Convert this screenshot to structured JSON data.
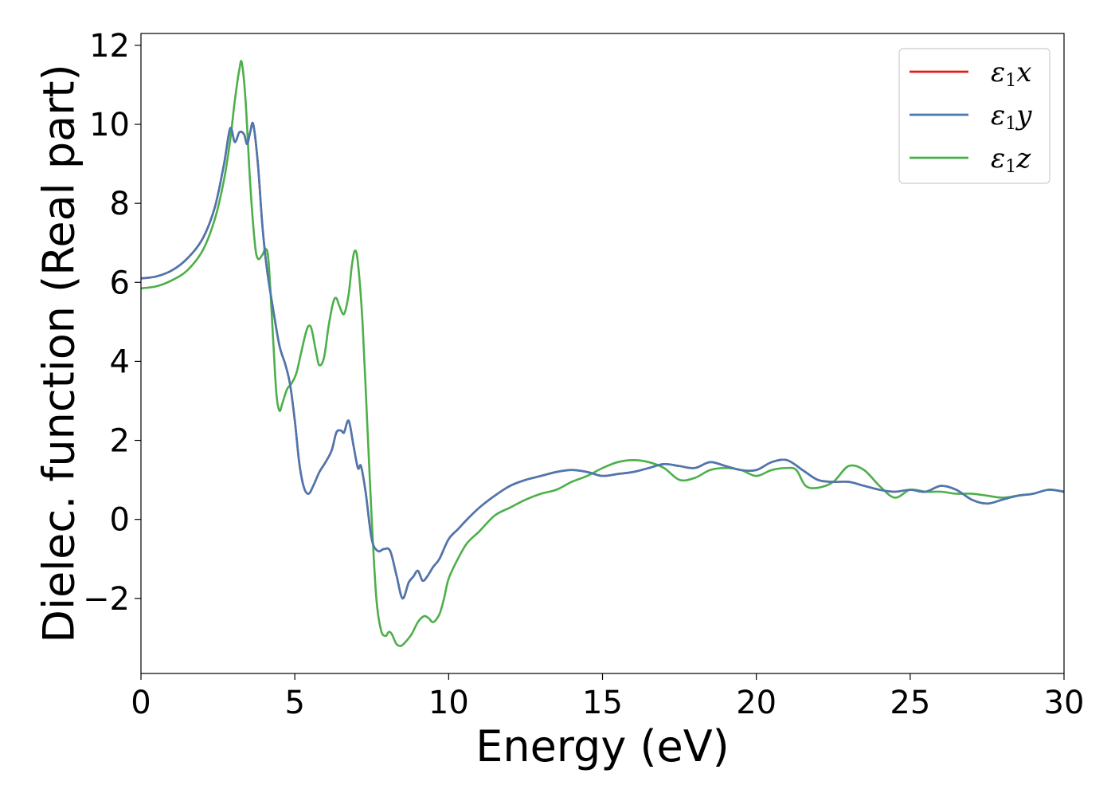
{
  "chart_data": {
    "type": "line",
    "xlabel": "Energy (eV)",
    "ylabel": "Dielec. function (Real part)",
    "xlim": [
      0,
      30
    ],
    "ylim": [
      -3.9,
      12.3
    ],
    "xticks": [
      0,
      5,
      10,
      15,
      20,
      25,
      30
    ],
    "yticks": [
      -2,
      0,
      2,
      4,
      6,
      8,
      10,
      12
    ],
    "xtick_labels": [
      "0",
      "5",
      "10",
      "15",
      "20",
      "25",
      "30"
    ],
    "ytick_labels": [
      "−2",
      "0",
      "2",
      "4",
      "6",
      "8",
      "10",
      "12"
    ],
    "grid": false,
    "legend_position": "top-right",
    "series": [
      {
        "name": "ε1x",
        "legend_main": "ε",
        "legend_sub": "1",
        "legend_tail": "x",
        "color": "#e41a1c",
        "points": [
          [
            0,
            6.1
          ],
          [
            0.5,
            6.15
          ],
          [
            1.0,
            6.3
          ],
          [
            1.5,
            6.6
          ],
          [
            2.0,
            7.1
          ],
          [
            2.4,
            7.9
          ],
          [
            2.7,
            9.0
          ],
          [
            2.9,
            9.9
          ],
          [
            3.05,
            9.55
          ],
          [
            3.2,
            9.8
          ],
          [
            3.35,
            9.75
          ],
          [
            3.45,
            9.5
          ],
          [
            3.55,
            9.8
          ],
          [
            3.65,
            10.0
          ],
          [
            3.8,
            9.0
          ],
          [
            3.95,
            7.4
          ],
          [
            4.1,
            6.3
          ],
          [
            4.3,
            5.3
          ],
          [
            4.5,
            4.4
          ],
          [
            4.7,
            3.9
          ],
          [
            4.85,
            3.4
          ],
          [
            5.0,
            2.5
          ],
          [
            5.15,
            1.4
          ],
          [
            5.3,
            0.8
          ],
          [
            5.45,
            0.65
          ],
          [
            5.6,
            0.85
          ],
          [
            5.8,
            1.2
          ],
          [
            6.0,
            1.45
          ],
          [
            6.2,
            1.75
          ],
          [
            6.35,
            2.2
          ],
          [
            6.5,
            2.25
          ],
          [
            6.6,
            2.2
          ],
          [
            6.75,
            2.5
          ],
          [
            6.9,
            1.9
          ],
          [
            7.05,
            1.3
          ],
          [
            7.15,
            1.35
          ],
          [
            7.3,
            0.7
          ],
          [
            7.5,
            -0.5
          ],
          [
            7.7,
            -0.8
          ],
          [
            7.9,
            -0.75
          ],
          [
            8.1,
            -0.8
          ],
          [
            8.3,
            -1.4
          ],
          [
            8.5,
            -2.0
          ],
          [
            8.7,
            -1.6
          ],
          [
            8.85,
            -1.45
          ],
          [
            9.0,
            -1.3
          ],
          [
            9.15,
            -1.55
          ],
          [
            9.3,
            -1.45
          ],
          [
            9.5,
            -1.2
          ],
          [
            9.7,
            -1.0
          ],
          [
            10.0,
            -0.5
          ],
          [
            10.3,
            -0.25
          ],
          [
            10.6,
            0.0
          ],
          [
            11.0,
            0.3
          ],
          [
            11.5,
            0.6
          ],
          [
            12.0,
            0.85
          ],
          [
            12.5,
            1.0
          ],
          [
            13.0,
            1.1
          ],
          [
            13.5,
            1.2
          ],
          [
            14.0,
            1.25
          ],
          [
            14.5,
            1.2
          ],
          [
            15.0,
            1.1
          ],
          [
            15.5,
            1.15
          ],
          [
            16.0,
            1.2
          ],
          [
            16.5,
            1.3
          ],
          [
            17.0,
            1.4
          ],
          [
            17.5,
            1.35
          ],
          [
            18.0,
            1.3
          ],
          [
            18.5,
            1.45
          ],
          [
            19.0,
            1.35
          ],
          [
            19.5,
            1.25
          ],
          [
            20.0,
            1.25
          ],
          [
            20.5,
            1.45
          ],
          [
            21.0,
            1.5
          ],
          [
            21.5,
            1.25
          ],
          [
            22.0,
            1.0
          ],
          [
            22.5,
            0.95
          ],
          [
            23.0,
            0.95
          ],
          [
            23.5,
            0.85
          ],
          [
            24.0,
            0.75
          ],
          [
            24.5,
            0.7
          ],
          [
            25.0,
            0.75
          ],
          [
            25.5,
            0.7
          ],
          [
            26.0,
            0.85
          ],
          [
            26.5,
            0.75
          ],
          [
            27.0,
            0.5
          ],
          [
            27.5,
            0.4
          ],
          [
            28.0,
            0.5
          ],
          [
            28.5,
            0.6
          ],
          [
            29.0,
            0.65
          ],
          [
            29.5,
            0.75
          ],
          [
            30.0,
            0.7
          ]
        ]
      },
      {
        "name": "ε1y",
        "legend_main": "ε",
        "legend_sub": "1",
        "legend_tail": "y",
        "color": "#4a78b0",
        "points": [
          [
            0,
            6.1
          ],
          [
            0.5,
            6.15
          ],
          [
            1.0,
            6.3
          ],
          [
            1.5,
            6.6
          ],
          [
            2.0,
            7.1
          ],
          [
            2.4,
            7.9
          ],
          [
            2.7,
            9.0
          ],
          [
            2.9,
            9.9
          ],
          [
            3.05,
            9.55
          ],
          [
            3.2,
            9.8
          ],
          [
            3.35,
            9.75
          ],
          [
            3.45,
            9.5
          ],
          [
            3.55,
            9.8
          ],
          [
            3.65,
            10.0
          ],
          [
            3.8,
            9.0
          ],
          [
            3.95,
            7.4
          ],
          [
            4.1,
            6.3
          ],
          [
            4.3,
            5.3
          ],
          [
            4.5,
            4.4
          ],
          [
            4.7,
            3.9
          ],
          [
            4.85,
            3.4
          ],
          [
            5.0,
            2.5
          ],
          [
            5.15,
            1.4
          ],
          [
            5.3,
            0.8
          ],
          [
            5.45,
            0.65
          ],
          [
            5.6,
            0.85
          ],
          [
            5.8,
            1.2
          ],
          [
            6.0,
            1.45
          ],
          [
            6.2,
            1.75
          ],
          [
            6.35,
            2.2
          ],
          [
            6.5,
            2.25
          ],
          [
            6.6,
            2.2
          ],
          [
            6.75,
            2.5
          ],
          [
            6.9,
            1.9
          ],
          [
            7.05,
            1.3
          ],
          [
            7.15,
            1.35
          ],
          [
            7.3,
            0.7
          ],
          [
            7.5,
            -0.5
          ],
          [
            7.7,
            -0.8
          ],
          [
            7.9,
            -0.75
          ],
          [
            8.1,
            -0.8
          ],
          [
            8.3,
            -1.4
          ],
          [
            8.5,
            -2.0
          ],
          [
            8.7,
            -1.6
          ],
          [
            8.85,
            -1.45
          ],
          [
            9.0,
            -1.3
          ],
          [
            9.15,
            -1.55
          ],
          [
            9.3,
            -1.45
          ],
          [
            9.5,
            -1.2
          ],
          [
            9.7,
            -1.0
          ],
          [
            10.0,
            -0.5
          ],
          [
            10.3,
            -0.25
          ],
          [
            10.6,
            0.0
          ],
          [
            11.0,
            0.3
          ],
          [
            11.5,
            0.6
          ],
          [
            12.0,
            0.85
          ],
          [
            12.5,
            1.0
          ],
          [
            13.0,
            1.1
          ],
          [
            13.5,
            1.2
          ],
          [
            14.0,
            1.25
          ],
          [
            14.5,
            1.2
          ],
          [
            15.0,
            1.1
          ],
          [
            15.5,
            1.15
          ],
          [
            16.0,
            1.2
          ],
          [
            16.5,
            1.3
          ],
          [
            17.0,
            1.4
          ],
          [
            17.5,
            1.35
          ],
          [
            18.0,
            1.3
          ],
          [
            18.5,
            1.45
          ],
          [
            19.0,
            1.35
          ],
          [
            19.5,
            1.25
          ],
          [
            20.0,
            1.25
          ],
          [
            20.5,
            1.45
          ],
          [
            21.0,
            1.5
          ],
          [
            21.5,
            1.25
          ],
          [
            22.0,
            1.0
          ],
          [
            22.5,
            0.95
          ],
          [
            23.0,
            0.95
          ],
          [
            23.5,
            0.85
          ],
          [
            24.0,
            0.75
          ],
          [
            24.5,
            0.7
          ],
          [
            25.0,
            0.75
          ],
          [
            25.5,
            0.7
          ],
          [
            26.0,
            0.85
          ],
          [
            26.5,
            0.75
          ],
          [
            27.0,
            0.5
          ],
          [
            27.5,
            0.4
          ],
          [
            28.0,
            0.5
          ],
          [
            28.5,
            0.6
          ],
          [
            29.0,
            0.65
          ],
          [
            29.5,
            0.75
          ],
          [
            30.0,
            0.7
          ]
        ]
      },
      {
        "name": "ε1z",
        "legend_main": "ε",
        "legend_sub": "1",
        "legend_tail": "z",
        "color": "#4daf4a",
        "points": [
          [
            0,
            5.85
          ],
          [
            0.5,
            5.9
          ],
          [
            1.0,
            6.05
          ],
          [
            1.5,
            6.3
          ],
          [
            2.0,
            6.8
          ],
          [
            2.4,
            7.6
          ],
          [
            2.7,
            8.6
          ],
          [
            2.9,
            9.6
          ],
          [
            3.05,
            10.6
          ],
          [
            3.2,
            11.4
          ],
          [
            3.28,
            11.55
          ],
          [
            3.4,
            10.6
          ],
          [
            3.55,
            8.5
          ],
          [
            3.7,
            7.0
          ],
          [
            3.8,
            6.6
          ],
          [
            3.95,
            6.7
          ],
          [
            4.05,
            6.85
          ],
          [
            4.15,
            6.5
          ],
          [
            4.3,
            4.5
          ],
          [
            4.4,
            3.2
          ],
          [
            4.5,
            2.75
          ],
          [
            4.6,
            2.95
          ],
          [
            4.75,
            3.3
          ],
          [
            4.9,
            3.45
          ],
          [
            5.05,
            3.7
          ],
          [
            5.2,
            4.2
          ],
          [
            5.35,
            4.7
          ],
          [
            5.45,
            4.9
          ],
          [
            5.55,
            4.8
          ],
          [
            5.7,
            4.2
          ],
          [
            5.8,
            3.9
          ],
          [
            5.95,
            4.1
          ],
          [
            6.1,
            4.9
          ],
          [
            6.25,
            5.5
          ],
          [
            6.35,
            5.6
          ],
          [
            6.45,
            5.4
          ],
          [
            6.6,
            5.2
          ],
          [
            6.75,
            5.7
          ],
          [
            6.85,
            6.4
          ],
          [
            6.95,
            6.8
          ],
          [
            7.05,
            6.5
          ],
          [
            7.2,
            5.0
          ],
          [
            7.35,
            2.5
          ],
          [
            7.5,
            0.0
          ],
          [
            7.65,
            -2.0
          ],
          [
            7.8,
            -2.8
          ],
          [
            7.95,
            -2.95
          ],
          [
            8.05,
            -2.85
          ],
          [
            8.15,
            -2.9
          ],
          [
            8.3,
            -3.15
          ],
          [
            8.45,
            -3.2
          ],
          [
            8.6,
            -3.1
          ],
          [
            8.8,
            -2.9
          ],
          [
            9.0,
            -2.6
          ],
          [
            9.2,
            -2.45
          ],
          [
            9.35,
            -2.5
          ],
          [
            9.5,
            -2.6
          ],
          [
            9.7,
            -2.4
          ],
          [
            9.85,
            -2.0
          ],
          [
            10.0,
            -1.5
          ],
          [
            10.3,
            -1.0
          ],
          [
            10.6,
            -0.6
          ],
          [
            11.0,
            -0.3
          ],
          [
            11.5,
            0.1
          ],
          [
            12.0,
            0.3
          ],
          [
            12.5,
            0.5
          ],
          [
            13.0,
            0.65
          ],
          [
            13.5,
            0.75
          ],
          [
            14.0,
            0.95
          ],
          [
            14.5,
            1.1
          ],
          [
            15.0,
            1.3
          ],
          [
            15.5,
            1.45
          ],
          [
            16.0,
            1.5
          ],
          [
            16.5,
            1.45
          ],
          [
            17.0,
            1.3
          ],
          [
            17.5,
            1.0
          ],
          [
            18.0,
            1.05
          ],
          [
            18.5,
            1.25
          ],
          [
            19.0,
            1.3
          ],
          [
            19.5,
            1.25
          ],
          [
            20.0,
            1.1
          ],
          [
            20.5,
            1.25
          ],
          [
            21.0,
            1.3
          ],
          [
            21.3,
            1.25
          ],
          [
            21.6,
            0.85
          ],
          [
            22.0,
            0.8
          ],
          [
            22.5,
            0.95
          ],
          [
            23.0,
            1.35
          ],
          [
            23.5,
            1.25
          ],
          [
            24.0,
            0.85
          ],
          [
            24.5,
            0.55
          ],
          [
            25.0,
            0.75
          ],
          [
            25.5,
            0.7
          ],
          [
            26.0,
            0.7
          ],
          [
            26.5,
            0.65
          ],
          [
            27.0,
            0.65
          ],
          [
            27.5,
            0.6
          ],
          [
            28.0,
            0.55
          ],
          [
            28.5,
            0.6
          ],
          [
            29.0,
            0.65
          ],
          [
            29.5,
            0.75
          ],
          [
            30.0,
            0.7
          ]
        ]
      }
    ]
  }
}
